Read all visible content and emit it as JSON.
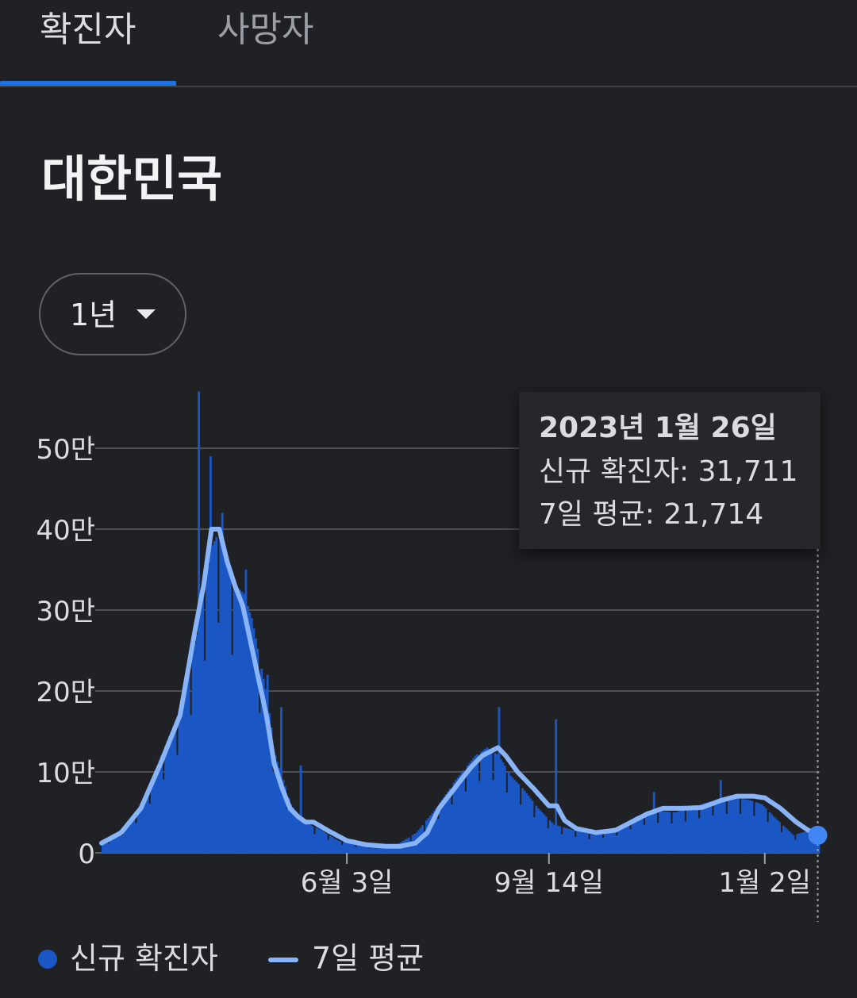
{
  "tabs": [
    {
      "label": "확진자",
      "active": true
    },
    {
      "label": "사망자",
      "active": false
    }
  ],
  "region_title": "대한민국",
  "period": {
    "selected": "1년"
  },
  "tooltip": {
    "date": "2023년 1월 26일",
    "cases_text": "신규 확진자: 31,711",
    "average_text": "7일 평균: 21,714"
  },
  "legend": {
    "bars_label": "신규 확진자",
    "line_label": "7일 평균"
  },
  "colors": {
    "accent": "#1a73e8",
    "bars": "#1a56c4",
    "line": "#8ab4f8",
    "point": "#4285f4"
  },
  "chart_data": {
    "type": "bar",
    "title": "",
    "xlabel": "",
    "ylabel": "",
    "ylim": [
      0,
      500000
    ],
    "y_ticks": [
      {
        "value": 0,
        "label": "0"
      },
      {
        "value": 100000,
        "label": "10만"
      },
      {
        "value": 200000,
        "label": "20만"
      },
      {
        "value": 300000,
        "label": "30만"
      },
      {
        "value": 400000,
        "label": "40만"
      },
      {
        "value": 500000,
        "label": "50만"
      }
    ],
    "x_ticks": [
      {
        "day": 125,
        "label": "6월 3일"
      },
      {
        "day": 228,
        "label": "9월 14일"
      },
      {
        "day": 338,
        "label": "1월 2일"
      }
    ],
    "series": [
      {
        "name": "신규 확진자",
        "kind": "bar",
        "anchors": [
          [
            0,
            10000
          ],
          [
            10,
            30000
          ],
          [
            20,
            60000
          ],
          [
            30,
            120000
          ],
          [
            40,
            180000
          ],
          [
            48,
            270000
          ],
          [
            52,
            330000
          ],
          [
            56,
            380000
          ],
          [
            60,
            400000
          ],
          [
            64,
            350000
          ],
          [
            68,
            330000
          ],
          [
            72,
            320000
          ],
          [
            76,
            290000
          ],
          [
            80,
            240000
          ],
          [
            84,
            190000
          ],
          [
            88,
            120000
          ],
          [
            92,
            90000
          ],
          [
            96,
            60000
          ],
          [
            100,
            45000
          ],
          [
            105,
            35000
          ],
          [
            110,
            30000
          ],
          [
            120,
            15000
          ],
          [
            130,
            10000
          ],
          [
            140,
            8000
          ],
          [
            150,
            10000
          ],
          [
            160,
            25000
          ],
          [
            170,
            55000
          ],
          [
            180,
            90000
          ],
          [
            190,
            120000
          ],
          [
            196,
            130000
          ],
          [
            202,
            120000
          ],
          [
            208,
            95000
          ],
          [
            214,
            80000
          ],
          [
            222,
            55000
          ],
          [
            230,
            35000
          ],
          [
            240,
            28000
          ],
          [
            250,
            22000
          ],
          [
            262,
            30000
          ],
          [
            272,
            45000
          ],
          [
            282,
            52000
          ],
          [
            292,
            50000
          ],
          [
            302,
            58000
          ],
          [
            312,
            65000
          ],
          [
            322,
            68000
          ],
          [
            330,
            65000
          ],
          [
            336,
            60000
          ],
          [
            342,
            45000
          ],
          [
            352,
            22000
          ],
          [
            366,
            31711
          ]
        ],
        "spikes": [
          [
            49,
            570000
          ],
          [
            55,
            490000
          ],
          [
            61,
            420000
          ],
          [
            73,
            350000
          ],
          [
            84,
            220000
          ],
          [
            91,
            180000
          ],
          [
            101,
            108000
          ],
          [
            202,
            180000
          ],
          [
            231,
            165000
          ],
          [
            281,
            75000
          ],
          [
            315,
            90000
          ]
        ],
        "last_value": 31711
      },
      {
        "name": "7일 평균",
        "kind": "line",
        "anchors": [
          [
            0,
            12000
          ],
          [
            10,
            25000
          ],
          [
            20,
            55000
          ],
          [
            30,
            110000
          ],
          [
            40,
            170000
          ],
          [
            48,
            280000
          ],
          [
            52,
            330000
          ],
          [
            56,
            400000
          ],
          [
            60,
            400000
          ],
          [
            64,
            360000
          ],
          [
            68,
            330000
          ],
          [
            72,
            305000
          ],
          [
            76,
            260000
          ],
          [
            80,
            215000
          ],
          [
            84,
            170000
          ],
          [
            88,
            110000
          ],
          [
            92,
            80000
          ],
          [
            96,
            55000
          ],
          [
            100,
            45000
          ],
          [
            104,
            38000
          ],
          [
            108,
            38000
          ],
          [
            115,
            28000
          ],
          [
            125,
            15000
          ],
          [
            135,
            10000
          ],
          [
            145,
            8000
          ],
          [
            152,
            8000
          ],
          [
            160,
            12000
          ],
          [
            166,
            25000
          ],
          [
            172,
            55000
          ],
          [
            180,
            80000
          ],
          [
            188,
            105000
          ],
          [
            194,
            120000
          ],
          [
            198,
            125000
          ],
          [
            202,
            130000
          ],
          [
            206,
            120000
          ],
          [
            212,
            100000
          ],
          [
            220,
            80000
          ],
          [
            228,
            58000
          ],
          [
            232,
            58000
          ],
          [
            236,
            40000
          ],
          [
            242,
            30000
          ],
          [
            252,
            25000
          ],
          [
            262,
            28000
          ],
          [
            270,
            38000
          ],
          [
            278,
            48000
          ],
          [
            286,
            55000
          ],
          [
            296,
            55000
          ],
          [
            306,
            56000
          ],
          [
            316,
            65000
          ],
          [
            324,
            70000
          ],
          [
            332,
            70000
          ],
          [
            338,
            68000
          ],
          [
            346,
            55000
          ],
          [
            354,
            38000
          ],
          [
            360,
            28000
          ],
          [
            366,
            21714
          ]
        ],
        "last_value": 21714
      }
    ],
    "highlight": {
      "date": "2023년 1월 26일",
      "cases": 31711,
      "average": 21714
    },
    "grid": true,
    "legend_position": "bottom-left"
  }
}
